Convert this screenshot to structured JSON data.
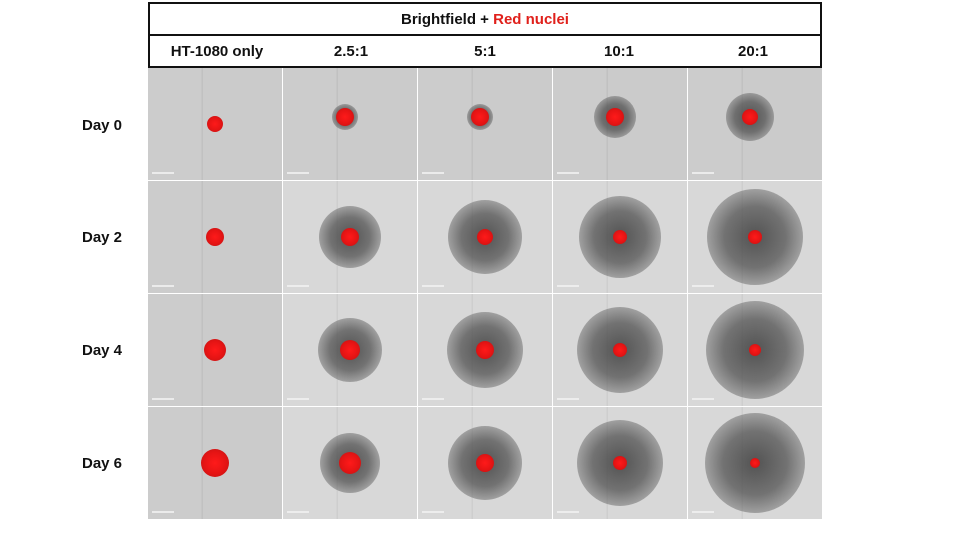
{
  "title": {
    "prefix": "Brightfield + ",
    "highlight": "Red nuclei"
  },
  "columns": [
    "HT-1080 only",
    "2.5:1",
    "5:1",
    "10:1",
    "20:1"
  ],
  "rows": [
    "Day 0",
    "Day 2",
    "Day 4",
    "Day 6"
  ],
  "colors": {
    "nuclei": "#e51414",
    "border": "#111111"
  }
}
